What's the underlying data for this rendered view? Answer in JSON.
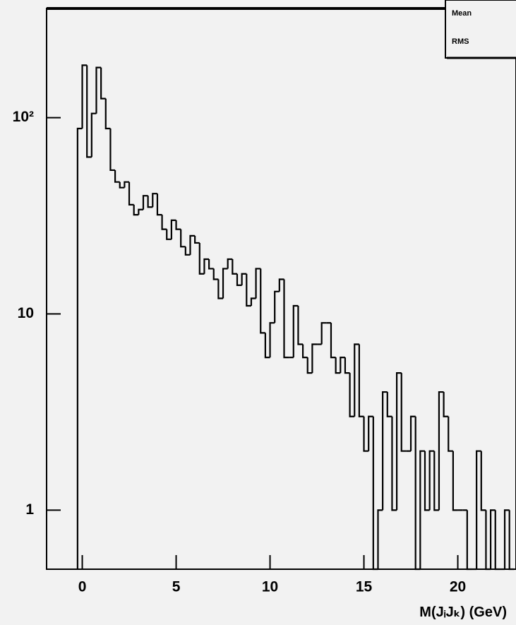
{
  "chart_data": {
    "type": "histogram",
    "x_label": "M(JᵢJₖ) (GeV)",
    "stats_labels": [
      "Mean",
      "RMS"
    ],
    "color": "#000000",
    "log_y": true,
    "xlim": [
      -1.9,
      23.1
    ],
    "ylim": [
      0.5,
      360
    ],
    "xticks": [
      0,
      5,
      10,
      15,
      20
    ],
    "yticks": [
      1,
      10,
      {
        "value": 100,
        "label": "10²"
      }
    ],
    "bins": [
      -0.25,
      0,
      0.25,
      0.5,
      0.75,
      1,
      1.25,
      1.5,
      1.75,
      2,
      2.25,
      2.5,
      2.75,
      3,
      3.25,
      3.5,
      3.75,
      4,
      4.25,
      4.5,
      4.75,
      5,
      5.25,
      5.5,
      5.75,
      6,
      6.25,
      6.5,
      6.75,
      7,
      7.25,
      7.5,
      7.75,
      8,
      8.25,
      8.5,
      8.75,
      9,
      9.25,
      9.5,
      9.75,
      10,
      10.25,
      10.5,
      10.75,
      11,
      11.25,
      11.5,
      11.75,
      12,
      12.25,
      12.5,
      12.75,
      13,
      13.25,
      13.5,
      13.75,
      14,
      14.25,
      14.5,
      14.75,
      15,
      15.25,
      15.5,
      15.75,
      16,
      16.25,
      16.5,
      16.75,
      17,
      17.25,
      17.5,
      17.75,
      18,
      18.25,
      18.5,
      18.75,
      19,
      19.25,
      19.5,
      19.75,
      20,
      20.25,
      20.5,
      20.75,
      21,
      21.25,
      21.5,
      21.75,
      22,
      22.25,
      22.5,
      22.75,
      23
    ],
    "counts": [
      88,
      185,
      63,
      105,
      180,
      125,
      88,
      54,
      47,
      44,
      47,
      36,
      32,
      34,
      40,
      35,
      41,
      32,
      27,
      24,
      30,
      27,
      22,
      20,
      25,
      23,
      16,
      19,
      17,
      15,
      12,
      17,
      19,
      16,
      14,
      16,
      11,
      12,
      17,
      8,
      6,
      9,
      13,
      15,
      6,
      6,
      11,
      7,
      6,
      5,
      7,
      7,
      9,
      9,
      6,
      5,
      6,
      5,
      3,
      7,
      3,
      2,
      3,
      0,
      1,
      4,
      3,
      1,
      5,
      2,
      2,
      3,
      0,
      2,
      1,
      2,
      1,
      4,
      3,
      2,
      1,
      1,
      1,
      0,
      0,
      2,
      1,
      0,
      1,
      0,
      0,
      1,
      0
    ]
  }
}
